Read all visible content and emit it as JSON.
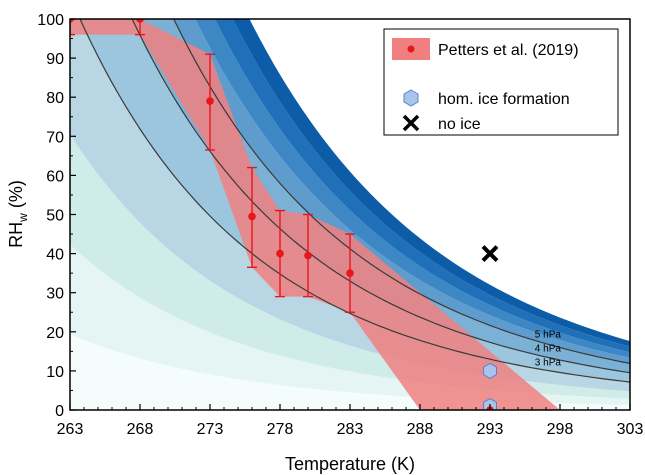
{
  "chart_data": {
    "type": "scatter",
    "xlabel": "Temperature (K)",
    "ylabel_main": "RH",
    "ylabel_sub": "w",
    "ylabel_unit": " (%)",
    "xlim": [
      263,
      303
    ],
    "ylim": [
      0,
      100
    ],
    "xticks": [
      263,
      268,
      273,
      278,
      283,
      288,
      293,
      298,
      303
    ],
    "yticks": [
      0,
      10,
      20,
      30,
      40,
      50,
      60,
      70,
      80,
      90,
      100
    ],
    "legend": {
      "position": "top-right",
      "entries": [
        "Petters et al. (2019)",
        "hom. ice formation",
        "no ice"
      ]
    },
    "petters_points": [
      {
        "x": 263,
        "y": 100,
        "err_low": 96,
        "err_high": 100
      },
      {
        "x": 268,
        "y": 100,
        "err_low": 96,
        "err_high": 100
      },
      {
        "x": 273,
        "y": 79,
        "err_low": 66.5,
        "err_high": 91
      },
      {
        "x": 276,
        "y": 49.5,
        "err_low": 36.5,
        "err_high": 62
      },
      {
        "x": 278,
        "y": 40,
        "err_low": 29,
        "err_high": 51
      },
      {
        "x": 280,
        "y": 39.5,
        "err_low": 29,
        "err_high": 50
      },
      {
        "x": 283,
        "y": 35,
        "err_low": 25,
        "err_high": 45
      },
      {
        "x": 293,
        "y": 0,
        "err_low": 0,
        "err_high": 0
      }
    ],
    "petters_region": [
      [
        263,
        100
      ],
      [
        268,
        100
      ],
      [
        273,
        91
      ],
      [
        276,
        62
      ],
      [
        278,
        51
      ],
      [
        280,
        50
      ],
      [
        283,
        45
      ],
      [
        298,
        0
      ],
      [
        288,
        0
      ],
      [
        283,
        25
      ],
      [
        280,
        29
      ],
      [
        278,
        29
      ],
      [
        276,
        36.5
      ],
      [
        273,
        66.5
      ],
      [
        268,
        96
      ],
      [
        263,
        96
      ]
    ],
    "hom_ice_points": [
      {
        "x": 293,
        "y": 10
      },
      {
        "x": 293,
        "y": 1
      }
    ],
    "no_ice_points": [
      {
        "x": 293,
        "y": 40
      }
    ],
    "vapor_pressure_curves": [
      {
        "label": "5 hPa",
        "hpa": 5
      },
      {
        "label": "4 hPa",
        "hpa": 4
      },
      {
        "label": "3 hPa",
        "hpa": 3
      }
    ],
    "background_bands_hpa": [
      {
        "from": 0,
        "to": 0.55,
        "color": "#f4fcfc"
      },
      {
        "from": 0.55,
        "to": 1.2,
        "color": "#e4f5f3"
      },
      {
        "from": 1.2,
        "to": 2.0,
        "color": "#d0ece9"
      },
      {
        "from": 2.0,
        "to": 3.0,
        "color": "#b8d6e3"
      },
      {
        "from": 3.0,
        "to": 4.0,
        "color": "#9cc6de"
      },
      {
        "from": 4.0,
        "to": 5.0,
        "color": "#7cb1d6"
      },
      {
        "from": 5.0,
        "to": 5.6,
        "color": "#5d9ccd"
      },
      {
        "from": 5.6,
        "to": 6.2,
        "color": "#3d87c4"
      },
      {
        "from": 6.2,
        "to": 6.8,
        "color": "#1f70b8"
      },
      {
        "from": 6.8,
        "to": 7.4,
        "color": "#0d5ca8"
      }
    ],
    "colors": {
      "petters_fill": "#f08080",
      "petters_point": "#e8161b",
      "hom_ice_fill": "#a9c4ea",
      "hom_ice_stroke": "#5b82c8",
      "no_ice": "#000000",
      "curve_line": "#3a3a3a"
    }
  }
}
